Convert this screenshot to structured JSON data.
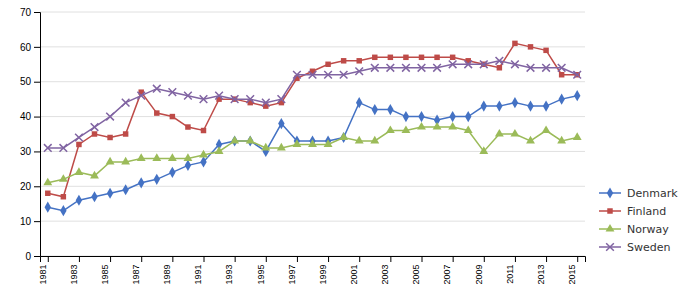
{
  "chart_data": {
    "type": "line",
    "x": [
      1981,
      1982,
      1983,
      1984,
      1985,
      1986,
      1987,
      1988,
      1989,
      1990,
      1991,
      1992,
      1993,
      1994,
      1995,
      1996,
      1997,
      1998,
      1999,
      2000,
      2001,
      2002,
      2003,
      2004,
      2005,
      2006,
      2007,
      2008,
      2009,
      2010,
      2011,
      2012,
      2013,
      2014,
      2015
    ],
    "series": [
      {
        "name": "Denmark",
        "color": "#4472C4",
        "marker": "diamond",
        "values": [
          14,
          13,
          16,
          17,
          18,
          19,
          21,
          22,
          24,
          26,
          27,
          32,
          33,
          33,
          30,
          38,
          33,
          33,
          33,
          34,
          44,
          42,
          42,
          40,
          40,
          39,
          40,
          40,
          43,
          43,
          44,
          43,
          43,
          45,
          46
        ]
      },
      {
        "name": "Finland",
        "color": "#BE4B48",
        "marker": "square",
        "values": [
          18,
          17,
          32,
          35,
          34,
          35,
          47,
          41,
          40,
          37,
          36,
          45,
          45,
          44,
          43,
          44,
          51,
          53,
          55,
          56,
          56,
          57,
          57,
          57,
          57,
          57,
          57,
          56,
          55,
          54,
          61,
          60,
          59,
          52,
          52
        ]
      },
      {
        "name": "Norway",
        "color": "#9BBB59",
        "marker": "triangle",
        "values": [
          21,
          22,
          24,
          23,
          27,
          27,
          28,
          28,
          28,
          28,
          29,
          30,
          33,
          33,
          31,
          31,
          32,
          32,
          32,
          34,
          33,
          33,
          36,
          36,
          37,
          37,
          37,
          36,
          30,
          35,
          35,
          33,
          36,
          33,
          34
        ]
      },
      {
        "name": "Sweden",
        "color": "#8064A2",
        "marker": "x",
        "values": [
          31,
          31,
          34,
          37,
          40,
          44,
          46,
          48,
          47,
          46,
          45,
          46,
          45,
          45,
          44,
          45,
          52,
          52,
          52,
          52,
          53,
          54,
          54,
          54,
          54,
          54,
          55,
          55,
          55,
          56,
          55,
          54,
          54,
          54,
          52
        ]
      }
    ],
    "xlim": [
      1980.5,
      2015.5
    ],
    "xticks": [
      1981,
      1983,
      1985,
      1987,
      1989,
      1991,
      1993,
      1995,
      1997,
      1999,
      2001,
      2003,
      2005,
      2007,
      2009,
      2011,
      2013,
      2015
    ],
    "ylim": [
      0,
      70
    ],
    "yticks": [
      0,
      10,
      20,
      30,
      40,
      50,
      60,
      70
    ],
    "grid": true,
    "legend": "lower right"
  }
}
